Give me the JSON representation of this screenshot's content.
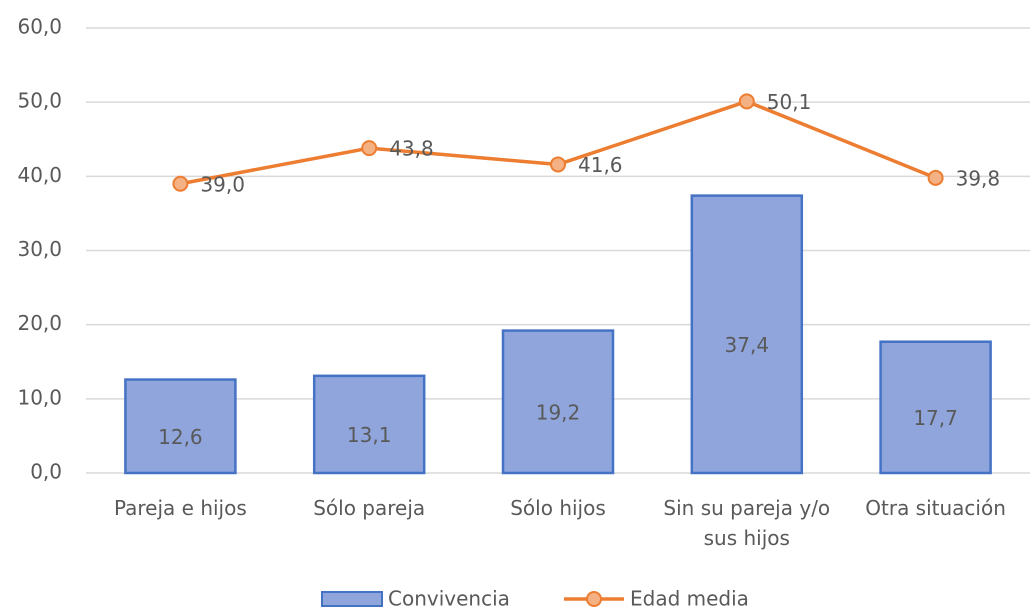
{
  "chart_data": {
    "type": "bar",
    "categories": [
      "Pareja e hijos",
      "Sólo pareja",
      "Sólo hijos",
      "Sin su pareja y/o sus hijos",
      "Otra situación"
    ],
    "series": [
      {
        "name": "Convivencia",
        "type": "bar",
        "color": "#8fa5dc",
        "edge": "#4472c4",
        "values": [
          12.6,
          13.1,
          19.2,
          37.4,
          17.7
        ],
        "value_labels": [
          "12,6",
          "13,1",
          "19,2",
          "37,4",
          "17,7"
        ]
      },
      {
        "name": "Edad media",
        "type": "line",
        "color": "#ed7d31",
        "marker": "#f4b183",
        "values": [
          39.0,
          43.8,
          41.6,
          50.1,
          39.8
        ],
        "value_labels": [
          "39,0",
          "43,8",
          "41,6",
          "50,1",
          "39,8"
        ]
      }
    ],
    "ylim": [
      0,
      60
    ],
    "yticks": [
      {
        "value": 0,
        "label": "0,0"
      },
      {
        "value": 10,
        "label": "10,0"
      },
      {
        "value": 20,
        "label": "20,0"
      },
      {
        "value": 30,
        "label": "30,0"
      },
      {
        "value": 40,
        "label": "40,0"
      },
      {
        "value": 50,
        "label": "50,0"
      },
      {
        "value": 60,
        "label": "60,0"
      }
    ],
    "grid": true,
    "legend": "bottom"
  }
}
